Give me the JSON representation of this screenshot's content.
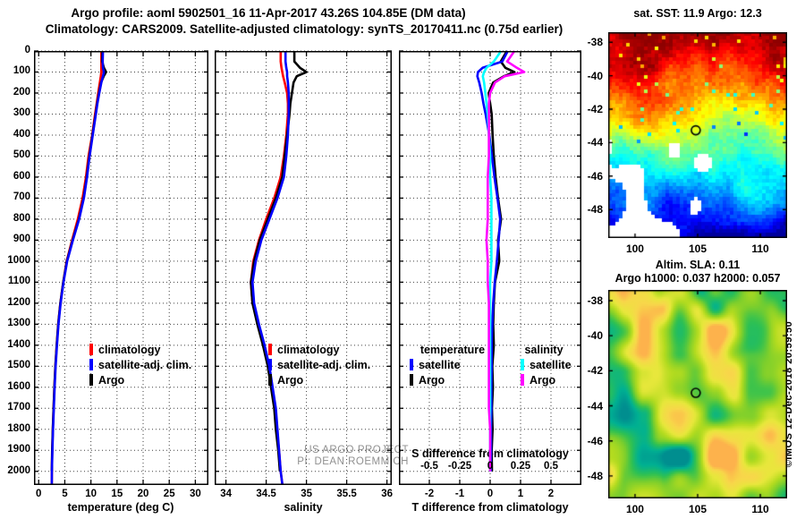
{
  "header": {
    "title_line1": "Argo profile: aoml 5902501_16 11-Apr-2017 43.26S 104.85E (DM data)",
    "title_line2": "Climatology: CARS2009. Satellite-adjusted climatology: synTS_20170411.nc (0.75d earlier)"
  },
  "credits": {
    "line1": "US ARGO PROJECT",
    "line2": "PI: DEAN ROEMMICH"
  },
  "watermark": "©IMOS 12-Dec-2018 20:59:50",
  "colors": {
    "climatology": "#ff0000",
    "satellite_adj_clim": "#0000ff",
    "argo": "#000000",
    "sal_satellite": "#00ffff",
    "sal_argo": "#ff00ff",
    "credits_gray": "#909090",
    "sla_palette": [
      "#00858f",
      "#00b193",
      "#2fc153",
      "#7ccf2d",
      "#b4dc20",
      "#e8e83c",
      "#f8d84a",
      "#ffa94d"
    ]
  },
  "chart_data": [
    {
      "id": "temp",
      "type": "line",
      "xlabel": "temperature (deg C)",
      "xlim": [
        -0.9,
        32.5
      ],
      "xticks": [
        0,
        5,
        10,
        15,
        20,
        25,
        30
      ],
      "ylim": [
        0,
        2065
      ],
      "yticks": [
        0,
        100,
        200,
        300,
        400,
        500,
        600,
        700,
        800,
        900,
        1000,
        1100,
        1200,
        1300,
        1400,
        1500,
        1600,
        1700,
        1800,
        1900,
        2000
      ],
      "show_ylabels": true,
      "legend": [
        {
          "label": "climatology",
          "color": "#ff0000"
        },
        {
          "label": "satellite-adj. clim.",
          "color": "#0000ff"
        },
        {
          "label": "Argo",
          "color": "#000000"
        }
      ],
      "depths": [
        0,
        50,
        80,
        100,
        120,
        150,
        200,
        250,
        300,
        400,
        500,
        600,
        700,
        800,
        900,
        1000,
        1100,
        1200,
        1300,
        1400,
        1500,
        1600,
        1700,
        1800,
        1900,
        2000
      ],
      "series": [
        {
          "name": "climatology",
          "color": "#ff0000",
          "values": [
            12.0,
            12.0,
            12.0,
            12.0,
            11.9,
            11.7,
            11.4,
            11.1,
            10.8,
            10.25,
            9.55,
            9.05,
            8.4,
            7.5,
            6.4,
            5.35,
            4.7,
            4.15,
            3.75,
            3.45,
            3.2,
            3.0,
            2.85,
            2.72,
            2.6,
            2.52
          ],
          "extend_depth": 2060,
          "extend_value": 2.5
        },
        {
          "name": "Argo",
          "color": "#000000",
          "values": [
            12.2,
            12.15,
            12.5,
            12.9,
            12.45,
            11.95,
            11.55,
            11.2,
            10.9,
            10.3,
            9.7,
            9.2,
            8.6,
            7.7,
            6.5,
            5.4,
            4.7,
            4.15,
            3.75,
            3.45,
            3.2,
            3.0,
            2.85,
            2.7,
            2.58,
            2.5
          ]
        },
        {
          "name": "satellite-adj. clim.",
          "color": "#0000ff",
          "values": [
            12.3,
            12.25,
            12.3,
            12.5,
            12.3,
            12.0,
            11.6,
            11.25,
            10.95,
            10.35,
            9.75,
            9.25,
            8.65,
            7.75,
            6.55,
            5.45,
            4.75,
            4.2,
            3.8,
            3.5,
            3.25,
            3.05,
            2.9,
            2.75,
            2.62,
            2.52
          ],
          "extend_depth": 2060,
          "extend_value": 2.5
        }
      ]
    },
    {
      "id": "sal",
      "type": "line",
      "xlabel": "salinity",
      "xlim": [
        33.86,
        36.06
      ],
      "xticks": [
        34,
        34.5,
        35,
        35.5,
        36
      ],
      "ylim": [
        0,
        2065
      ],
      "yticks": [
        0,
        100,
        200,
        300,
        400,
        500,
        600,
        700,
        800,
        900,
        1000,
        1100,
        1200,
        1300,
        1400,
        1500,
        1600,
        1700,
        1800,
        1900,
        2000
      ],
      "show_ylabels": false,
      "legend": [
        {
          "label": "climatology",
          "color": "#ff0000"
        },
        {
          "label": "satellite-adj. clim.",
          "color": "#0000ff"
        },
        {
          "label": "Argo",
          "color": "#000000"
        }
      ],
      "depths": [
        0,
        50,
        80,
        100,
        120,
        150,
        200,
        250,
        300,
        400,
        500,
        600,
        700,
        800,
        900,
        1000,
        1100,
        1200,
        1300,
        1400,
        1500,
        1600,
        1700,
        1800,
        1900,
        2000
      ],
      "series": [
        {
          "name": "climatology",
          "color": "#ff0000",
          "values": [
            34.68,
            34.68,
            34.69,
            34.7,
            34.71,
            34.73,
            34.76,
            34.77,
            34.77,
            34.75,
            34.72,
            34.68,
            34.6,
            34.5,
            34.41,
            34.34,
            34.31,
            34.33,
            34.4,
            34.47,
            34.53,
            34.57,
            34.61,
            34.63,
            34.66,
            34.68
          ],
          "extend_depth": 2060,
          "extend_value": 34.7
        },
        {
          "name": "Argo",
          "color": "#000000",
          "values": [
            34.85,
            34.85,
            34.92,
            35.0,
            34.88,
            34.84,
            34.82,
            34.8,
            34.79,
            34.76,
            34.73,
            34.7,
            34.62,
            34.52,
            34.42,
            34.35,
            34.31,
            34.33,
            34.39,
            34.46,
            34.52,
            34.56,
            34.6,
            34.62,
            34.65,
            34.67
          ]
        },
        {
          "name": "satellite-adj. clim.",
          "color": "#0000ff",
          "values": [
            34.74,
            34.74,
            34.75,
            34.76,
            34.76,
            34.77,
            34.78,
            34.78,
            34.78,
            34.77,
            34.75,
            34.72,
            34.64,
            34.54,
            34.44,
            34.37,
            34.33,
            34.35,
            34.41,
            34.48,
            34.54,
            34.58,
            34.62,
            34.64,
            34.66,
            34.68
          ],
          "extend_depth": 2060,
          "extend_value": 34.7
        }
      ]
    },
    {
      "id": "diff",
      "type": "line",
      "xlabel": "T difference from climatology",
      "inner_label": "S difference from climatology",
      "s_ticks": [
        "-0.5",
        "-0.25",
        "0",
        "0.25",
        "0.5"
      ],
      "s_scale": 4,
      "xlim": [
        -3,
        3
      ],
      "xticks": [
        -2,
        -1,
        0,
        1,
        2
      ],
      "ylim": [
        0,
        2065
      ],
      "yticks": [
        0,
        100,
        200,
        300,
        400,
        500,
        600,
        700,
        800,
        900,
        1000,
        1100,
        1200,
        1300,
        1400,
        1500,
        1600,
        1700,
        1800,
        1900,
        2000
      ],
      "show_ylabels": false,
      "legend_columns": [
        {
          "header": "temperature",
          "items": [
            {
              "label": "satellite",
              "color": "#0000ff"
            },
            {
              "label": "Argo",
              "color": "#000000"
            }
          ]
        },
        {
          "header": "salinity",
          "items": [
            {
              "label": "satellite",
              "color": "#00ffff"
            },
            {
              "label": "Argo",
              "color": "#ff00ff"
            }
          ]
        }
      ],
      "depths": [
        0,
        50,
        80,
        100,
        120,
        150,
        200,
        250,
        300,
        400,
        500,
        600,
        700,
        800,
        900,
        1000,
        1100,
        1200,
        1300,
        1400,
        1500,
        1600,
        1700,
        1800,
        1900,
        2000
      ],
      "series": [
        {
          "name": "T Argo",
          "color": "#000000",
          "plot_scale": 1,
          "values": [
            0.55,
            0.35,
            0.5,
            0.8,
            0.45,
            0.1,
            -0.05,
            0.0,
            0.05,
            0.08,
            0.12,
            0.18,
            0.26,
            0.36,
            0.26,
            0.3,
            0.16,
            0.12,
            0.1,
            0.12,
            0.07,
            0.09,
            0.06,
            0.08,
            0.05,
            0.06
          ]
        },
        {
          "name": "T satellite",
          "color": "#0000ff",
          "plot_scale": 1,
          "values": [
            0.58,
            0.4,
            -0.25,
            -0.4,
            -0.42,
            -0.36,
            -0.28,
            -0.22,
            -0.15,
            -0.03,
            0.06,
            0.14,
            0.24,
            0.33,
            0.28,
            0.22,
            0.15,
            0.1,
            0.07,
            0.05,
            0.05,
            0.04,
            0.04,
            0.03,
            0.03,
            0.02
          ]
        },
        {
          "name": "S satellite",
          "color": "#00ffff",
          "plot_scale": 4,
          "values": [
            0.09,
            0.03,
            -0.03,
            -0.05,
            -0.06,
            -0.05,
            -0.04,
            -0.03,
            -0.02,
            -0.01,
            0.0,
            0.0,
            0.01,
            0.01,
            0.01,
            0.01,
            0.0,
            0.0,
            0.0,
            0.0,
            0.0,
            0.0,
            0.0,
            0.0,
            0.0,
            0.0
          ]
        },
        {
          "name": "S Argo",
          "color": "#ff00ff",
          "plot_scale": 4,
          "values": [
            0.2,
            0.14,
            0.22,
            0.28,
            0.12,
            0.04,
            0.0,
            -0.01,
            -0.01,
            -0.01,
            -0.01,
            -0.02,
            -0.02,
            -0.02,
            -0.03,
            -0.02,
            -0.02,
            -0.01,
            -0.01,
            -0.01,
            -0.01,
            -0.01,
            -0.01,
            0.0,
            0.0,
            0.0
          ]
        }
      ]
    },
    {
      "id": "sst",
      "type": "heatmap",
      "header": "sat. SST: 11.9 Argo: 12.3",
      "style": "pixelated",
      "colormap": "jet",
      "xlim": [
        97.86,
        112.14
      ],
      "ylim_top": -37.4,
      "ylim_bottom": -49.7,
      "xticks": [
        100,
        105,
        110
      ],
      "yticks": [
        -38,
        -40,
        -42,
        -44,
        -46,
        -48
      ],
      "marker": {
        "lon": 104.85,
        "lat": -43.26
      }
    },
    {
      "id": "sla",
      "type": "heatmap",
      "header_line1": "Altim. SLA: 0.11",
      "header_line2": "Argo h1000: 0.037 h2000: 0.057",
      "style": "smooth",
      "colormap": "sla_palette",
      "xlim": [
        97.86,
        112.14
      ],
      "ylim_top": -37.39,
      "ylim_bottom": -49.28,
      "xticks": [
        100,
        105,
        110
      ],
      "yticks": [
        -38,
        -40,
        -42,
        -44,
        -46,
        -48
      ],
      "marker": {
        "lon": 104.85,
        "lat": -43.26
      }
    }
  ]
}
